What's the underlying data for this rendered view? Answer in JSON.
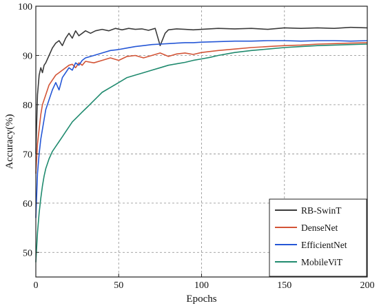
{
  "chart_data": {
    "type": "line",
    "title": "",
    "xlabel": "Epochs",
    "ylabel": "Accuracy(%)",
    "xlim": [
      0,
      200
    ],
    "ylim": [
      45,
      100
    ],
    "xticks": [
      0,
      50,
      100,
      150,
      200
    ],
    "yticks": [
      50,
      60,
      70,
      80,
      90,
      100
    ],
    "grid": true,
    "legend_position": "bottom-right",
    "series": [
      {
        "name": "RB-SwinT",
        "color": "#3a3a3a",
        "x": [
          0,
          1,
          2,
          3,
          4,
          5,
          6,
          8,
          10,
          12,
          14,
          16,
          18,
          20,
          22,
          24,
          26,
          28,
          30,
          33,
          36,
          40,
          44,
          48,
          52,
          56,
          60,
          64,
          68,
          72,
          75,
          78,
          80,
          85,
          90,
          95,
          100,
          110,
          120,
          130,
          140,
          150,
          160,
          170,
          180,
          190,
          200
        ],
        "y": [
          70,
          82,
          86,
          87.5,
          86.5,
          88,
          88.5,
          90,
          91.5,
          92.5,
          93,
          92,
          93.5,
          94.5,
          93.5,
          95,
          94,
          94.5,
          95,
          94.5,
          95,
          95.3,
          95,
          95.5,
          95.2,
          95.5,
          95.3,
          95.4,
          95.1,
          95.5,
          92,
          94.5,
          95.2,
          95.4,
          95.3,
          95.2,
          95.3,
          95.5,
          95.4,
          95.5,
          95.3,
          95.6,
          95.5,
          95.6,
          95.5,
          95.7,
          95.6
        ]
      },
      {
        "name": "DenseNet",
        "color": "#d35436",
        "x": [
          0,
          1,
          2,
          3,
          4,
          5,
          6,
          8,
          10,
          12,
          14,
          16,
          18,
          20,
          22,
          24,
          26,
          28,
          30,
          35,
          40,
          45,
          50,
          55,
          60,
          65,
          70,
          75,
          80,
          85,
          90,
          95,
          100,
          110,
          120,
          130,
          140,
          150,
          160,
          170,
          180,
          190,
          200
        ],
        "y": [
          66,
          72,
          75,
          78,
          80,
          81,
          82,
          84,
          85,
          86,
          86.5,
          87,
          87.5,
          88,
          88.2,
          87.5,
          88.5,
          88,
          88.8,
          88.5,
          89,
          89.5,
          89,
          89.8,
          90,
          89.5,
          90,
          90.5,
          89.8,
          90.3,
          90.5,
          90.2,
          90.6,
          91,
          91.3,
          91.6,
          91.8,
          92,
          92.1,
          92.3,
          92.4,
          92.5,
          92.6
        ]
      },
      {
        "name": "EfficientNet",
        "color": "#2456d6",
        "x": [
          0,
          1,
          2,
          3,
          4,
          5,
          6,
          8,
          10,
          12,
          14,
          16,
          18,
          20,
          22,
          24,
          26,
          28,
          30,
          35,
          40,
          45,
          50,
          55,
          60,
          65,
          70,
          75,
          80,
          85,
          90,
          95,
          100,
          110,
          120,
          130,
          140,
          150,
          160,
          170,
          180,
          190,
          200
        ],
        "y": [
          57,
          66,
          70,
          73,
          75,
          77,
          79,
          81,
          83,
          84.5,
          83,
          85.5,
          86.5,
          87.5,
          87,
          88.5,
          88,
          89,
          89.5,
          90,
          90.5,
          91,
          91.2,
          91.5,
          91.8,
          92,
          92.2,
          92.3,
          92.4,
          92.5,
          92.6,
          92.6,
          92.7,
          92.8,
          92.9,
          92.9,
          93,
          93,
          92.9,
          93,
          93,
          92.9,
          93
        ]
      },
      {
        "name": "MobileViT",
        "color": "#1f8a6e",
        "x": [
          0,
          1,
          2,
          3,
          4,
          5,
          6,
          8,
          10,
          12,
          14,
          16,
          18,
          20,
          22,
          25,
          28,
          31,
          34,
          37,
          40,
          45,
          50,
          55,
          60,
          65,
          70,
          75,
          80,
          85,
          90,
          95,
          100,
          105,
          110,
          115,
          120,
          130,
          140,
          150,
          160,
          170,
          180,
          190,
          200
        ],
        "y": [
          48,
          54,
          58,
          61,
          63.5,
          65.5,
          67,
          69,
          70.5,
          71.5,
          72.5,
          73.5,
          74.5,
          75.5,
          76.5,
          77.5,
          78.5,
          79.5,
          80.5,
          81.5,
          82.5,
          83.5,
          84.5,
          85.5,
          86,
          86.5,
          87,
          87.5,
          88,
          88.3,
          88.6,
          89,
          89.3,
          89.6,
          90,
          90.3,
          90.6,
          91,
          91.3,
          91.6,
          91.8,
          92,
          92.1,
          92.2,
          92.3
        ]
      }
    ]
  }
}
